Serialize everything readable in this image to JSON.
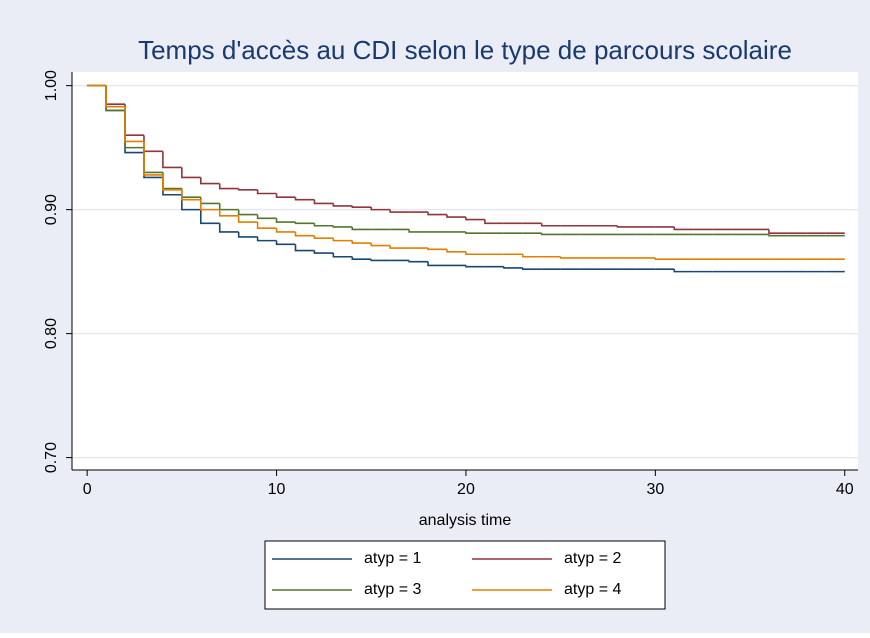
{
  "chart_data": {
    "type": "step",
    "title": "Temps d'accès au CDI selon le type de parcours scolaire",
    "x_label": "analysis time",
    "x": [
      0,
      1,
      2,
      3,
      4,
      5,
      6,
      7,
      8,
      9,
      10,
      11,
      12,
      13,
      14,
      15,
      16,
      17,
      18,
      19,
      20,
      21,
      22,
      23,
      24,
      25,
      26,
      27,
      28,
      29,
      30,
      31,
      32,
      33,
      34,
      35,
      36,
      37,
      38,
      39,
      40
    ],
    "series": [
      {
        "name": "atyp = 1",
        "color": "#1a476f",
        "values": [
          1.0,
          0.98,
          0.946,
          0.926,
          0.912,
          0.9,
          0.889,
          0.882,
          0.878,
          0.875,
          0.872,
          0.867,
          0.865,
          0.862,
          0.86,
          0.859,
          0.859,
          0.858,
          0.855,
          0.855,
          0.854,
          0.854,
          0.853,
          0.852,
          0.852,
          0.852,
          0.852,
          0.852,
          0.852,
          0.852,
          0.852,
          0.85,
          0.85,
          0.85,
          0.85,
          0.85,
          0.85,
          0.85,
          0.85,
          0.85,
          0.85
        ]
      },
      {
        "name": "atyp = 2",
        "color": "#90353b",
        "values": [
          1.0,
          0.985,
          0.96,
          0.947,
          0.934,
          0.926,
          0.921,
          0.917,
          0.916,
          0.913,
          0.91,
          0.908,
          0.905,
          0.903,
          0.902,
          0.9,
          0.898,
          0.898,
          0.896,
          0.894,
          0.892,
          0.889,
          0.889,
          0.889,
          0.887,
          0.887,
          0.887,
          0.887,
          0.886,
          0.886,
          0.886,
          0.884,
          0.884,
          0.884,
          0.884,
          0.884,
          0.881,
          0.881,
          0.881,
          0.881,
          0.881
        ]
      },
      {
        "name": "atyp = 3",
        "color": "#55752f",
        "values": [
          1.0,
          0.98,
          0.95,
          0.93,
          0.917,
          0.91,
          0.905,
          0.9,
          0.896,
          0.893,
          0.89,
          0.889,
          0.887,
          0.886,
          0.884,
          0.884,
          0.884,
          0.882,
          0.882,
          0.882,
          0.881,
          0.881,
          0.881,
          0.881,
          0.88,
          0.88,
          0.88,
          0.88,
          0.88,
          0.88,
          0.88,
          0.88,
          0.88,
          0.88,
          0.88,
          0.88,
          0.879,
          0.879,
          0.879,
          0.879,
          0.879
        ]
      },
      {
        "name": "atyp = 4",
        "color": "#e37e00",
        "values": [
          1.0,
          0.983,
          0.955,
          0.928,
          0.916,
          0.908,
          0.9,
          0.895,
          0.89,
          0.885,
          0.882,
          0.879,
          0.877,
          0.875,
          0.873,
          0.871,
          0.869,
          0.869,
          0.868,
          0.866,
          0.864,
          0.864,
          0.864,
          0.862,
          0.862,
          0.861,
          0.861,
          0.861,
          0.861,
          0.861,
          0.86,
          0.86,
          0.86,
          0.86,
          0.86,
          0.86,
          0.86,
          0.86,
          0.86,
          0.86,
          0.86
        ]
      }
    ],
    "xlim": [
      -0.8,
      40.7
    ],
    "ylim": [
      0.69,
      1.011
    ],
    "xticks": [
      0,
      10,
      20,
      30,
      40
    ],
    "yticks": [
      {
        "value": 0.7,
        "label": "0.70"
      },
      {
        "value": 0.8,
        "label": "0.80"
      },
      {
        "value": 0.9,
        "label": "0.90"
      },
      {
        "value": 1.0,
        "label": "1.00"
      }
    ],
    "grid": true,
    "legend": "bottom"
  }
}
